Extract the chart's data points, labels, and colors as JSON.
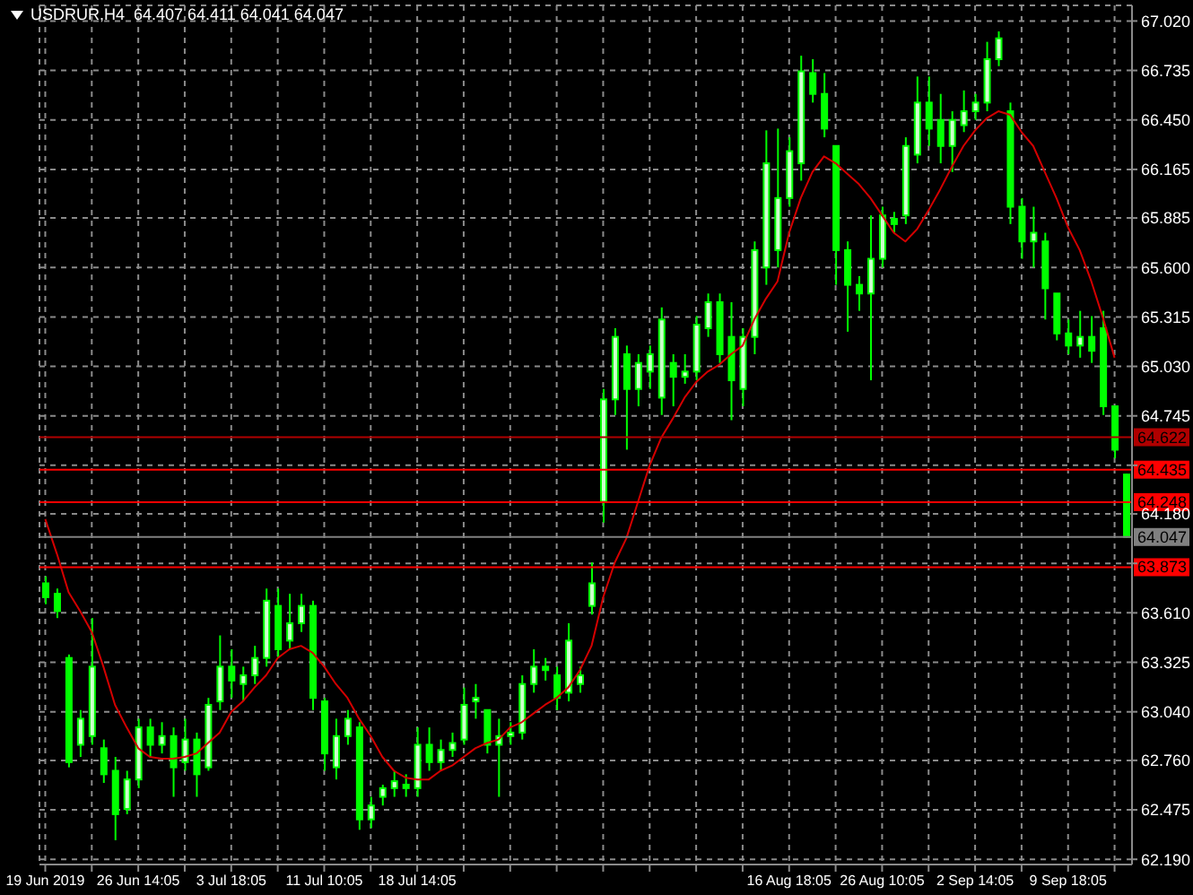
{
  "chart_data": {
    "type": "candlestick",
    "title": "USDRUR,H4  64.407 64.411 64.041 64.047",
    "color": "#00ff00",
    "grid": true,
    "categories": [
      "19 Jun 2019",
      null,
      null,
      null,
      null,
      null,
      null,
      null,
      "26 Jun 14:05",
      null,
      null,
      null,
      null,
      null,
      null,
      null,
      "3 Jul 18:05",
      null,
      null,
      null,
      null,
      null,
      null,
      null,
      "11 Jul 10:05",
      null,
      null,
      null,
      null,
      null,
      null,
      null,
      "18 Jul 14:05",
      null,
      null,
      null,
      null,
      null,
      null,
      null,
      null,
      null,
      null,
      null,
      null,
      null,
      null,
      null,
      null,
      null,
      null,
      null,
      null,
      null,
      null,
      null,
      null,
      null,
      null,
      null,
      null,
      null,
      null,
      null,
      "16 Aug 18:05",
      null,
      null,
      null,
      null,
      null,
      null,
      null,
      "26 Aug 10:05",
      null,
      null,
      null,
      null,
      null,
      null,
      null,
      "2 Sep 14:05",
      null,
      null,
      null,
      null,
      null,
      null,
      null,
      "9 Sep 18:05",
      null,
      null,
      null,
      null,
      null
    ],
    "ohlc": [
      [
        63.78,
        63.82,
        63.66,
        63.7
      ],
      [
        63.72,
        63.75,
        63.58,
        63.62
      ],
      [
        63.35,
        63.37,
        62.72,
        62.75
      ],
      [
        62.85,
        63.05,
        62.78,
        63.0
      ],
      [
        62.9,
        63.58,
        62.85,
        63.3
      ],
      [
        62.83,
        62.88,
        62.63,
        62.68
      ],
      [
        62.7,
        62.78,
        62.3,
        62.45
      ],
      [
        62.48,
        62.7,
        62.45,
        62.65
      ],
      [
        62.65,
        63.0,
        62.6,
        62.95
      ],
      [
        62.95,
        63.0,
        62.78,
        62.85
      ],
      [
        62.85,
        62.98,
        62.8,
        62.9
      ],
      [
        62.9,
        62.95,
        62.55,
        62.72
      ],
      [
        62.75,
        63.0,
        62.7,
        62.88
      ],
      [
        62.88,
        62.92,
        62.55,
        62.68
      ],
      [
        62.72,
        63.12,
        62.7,
        63.08
      ],
      [
        63.1,
        63.48,
        63.05,
        63.3
      ],
      [
        63.3,
        63.4,
        63.12,
        63.22
      ],
      [
        63.2,
        63.3,
        63.1,
        63.25
      ],
      [
        63.25,
        63.42,
        63.2,
        63.35
      ],
      [
        63.35,
        63.75,
        63.3,
        63.68
      ],
      [
        63.65,
        63.75,
        63.35,
        63.4
      ],
      [
        63.45,
        63.72,
        63.4,
        63.55
      ],
      [
        63.55,
        63.72,
        63.5,
        63.65
      ],
      [
        63.65,
        63.68,
        63.05,
        63.12
      ],
      [
        63.1,
        63.12,
        62.7,
        62.8
      ],
      [
        62.72,
        63.0,
        62.65,
        62.9
      ],
      [
        62.9,
        63.05,
        62.85,
        63.0
      ],
      [
        62.95,
        62.98,
        62.36,
        62.42
      ],
      [
        62.42,
        62.55,
        62.37,
        62.5
      ],
      [
        62.55,
        62.62,
        62.5,
        62.6
      ],
      [
        62.6,
        62.7,
        62.55,
        62.64
      ],
      [
        62.62,
        62.68,
        62.55,
        62.6
      ],
      [
        62.6,
        62.95,
        62.55,
        62.85
      ],
      [
        62.85,
        62.95,
        62.7,
        62.75
      ],
      [
        62.75,
        62.88,
        62.7,
        62.82
      ],
      [
        62.82,
        62.92,
        62.78,
        62.86
      ],
      [
        62.88,
        63.18,
        62.85,
        63.08
      ],
      [
        63.1,
        63.2,
        63.0,
        63.12
      ],
      [
        63.05,
        63.05,
        62.8,
        62.85
      ],
      [
        62.85,
        63.0,
        62.55,
        62.9
      ],
      [
        62.9,
        62.98,
        62.85,
        62.92
      ],
      [
        62.92,
        63.25,
        62.88,
        63.2
      ],
      [
        63.2,
        63.4,
        63.15,
        63.3
      ],
      [
        63.3,
        63.35,
        63.22,
        63.28
      ],
      [
        63.25,
        63.3,
        63.05,
        63.12
      ],
      [
        63.15,
        63.55,
        63.1,
        63.45
      ],
      [
        63.2,
        63.3,
        63.15,
        63.25
      ],
      [
        63.65,
        63.9,
        63.6,
        63.78
      ],
      [
        64.25,
        64.9,
        64.13,
        64.84
      ],
      [
        64.84,
        65.25,
        64.75,
        65.2
      ],
      [
        65.1,
        65.15,
        64.55,
        64.9
      ],
      [
        64.9,
        65.1,
        64.8,
        65.05
      ],
      [
        65.0,
        65.15,
        64.9,
        65.1
      ],
      [
        64.85,
        65.37,
        64.75,
        65.3
      ],
      [
        65.05,
        65.1,
        64.8,
        64.97
      ],
      [
        64.97,
        65.1,
        64.93,
        65.0
      ],
      [
        65.0,
        65.32,
        64.95,
        65.27
      ],
      [
        65.25,
        65.45,
        65.2,
        65.4
      ],
      [
        65.4,
        65.45,
        65.05,
        65.1
      ],
      [
        65.2,
        65.4,
        64.72,
        64.95
      ],
      [
        64.9,
        65.25,
        64.8,
        65.2
      ],
      [
        65.2,
        65.75,
        65.1,
        65.7
      ],
      [
        65.6,
        66.39,
        65.5,
        66.2
      ],
      [
        65.7,
        66.4,
        65.6,
        66.0
      ],
      [
        66.0,
        66.35,
        65.95,
        66.27
      ],
      [
        66.2,
        66.82,
        66.1,
        66.73
      ],
      [
        66.72,
        66.8,
        66.55,
        66.6
      ],
      [
        66.6,
        66.72,
        66.35,
        66.4
      ],
      [
        66.3,
        66.3,
        65.5,
        65.7
      ],
      [
        65.7,
        65.75,
        65.23,
        65.5
      ],
      [
        65.5,
        65.55,
        65.35,
        65.45
      ],
      [
        65.45,
        65.9,
        64.95,
        65.65
      ],
      [
        65.65,
        65.95,
        65.6,
        65.9
      ],
      [
        65.88,
        65.92,
        65.8,
        65.85
      ],
      [
        65.9,
        66.35,
        65.85,
        66.3
      ],
      [
        66.25,
        66.7,
        66.2,
        66.55
      ],
      [
        66.55,
        66.7,
        66.3,
        66.4
      ],
      [
        66.45,
        66.6,
        66.2,
        66.3
      ],
      [
        66.3,
        66.5,
        66.15,
        66.45
      ],
      [
        66.42,
        66.62,
        66.38,
        66.5
      ],
      [
        66.5,
        66.6,
        66.45,
        66.55
      ],
      [
        66.55,
        66.9,
        66.5,
        66.8
      ],
      [
        66.8,
        66.96,
        66.76,
        66.92
      ],
      [
        66.5,
        66.55,
        65.85,
        65.95
      ],
      [
        65.95,
        66.0,
        65.65,
        65.75
      ],
      [
        65.75,
        65.95,
        65.6,
        65.8
      ],
      [
        65.75,
        65.8,
        65.3,
        65.48
      ],
      [
        65.45,
        65.45,
        65.18,
        65.22
      ],
      [
        65.22,
        65.3,
        65.1,
        65.15
      ],
      [
        65.15,
        65.35,
        65.08,
        65.2
      ],
      [
        65.2,
        65.32,
        65.05,
        65.12
      ],
      [
        65.25,
        65.35,
        64.75,
        64.8
      ],
      [
        64.8,
        64.8,
        64.5,
        64.55
      ],
      [
        64.407,
        64.411,
        64.041,
        64.047
      ]
    ],
    "series": [
      {
        "type": "line",
        "color": "#d40000",
        "values": [
          64.15,
          63.95,
          63.73,
          63.62,
          63.5,
          63.3,
          63.08,
          62.95,
          62.83,
          62.78,
          62.77,
          62.77,
          62.78,
          62.8,
          62.86,
          62.92,
          63.04,
          63.1,
          63.18,
          63.25,
          63.35,
          63.4,
          63.42,
          63.38,
          63.3,
          63.2,
          63.12,
          63.0,
          62.9,
          62.78,
          62.7,
          62.66,
          62.65,
          62.65,
          62.7,
          62.73,
          62.78,
          62.83,
          62.86,
          62.88,
          62.95,
          62.98,
          63.03,
          63.08,
          63.12,
          63.18,
          63.28,
          63.42,
          63.7,
          63.9,
          64.04,
          64.25,
          64.46,
          64.62,
          64.73,
          64.85,
          64.94,
          65.0,
          65.04,
          65.1,
          65.15,
          65.3,
          65.42,
          65.52,
          65.8,
          66.0,
          66.15,
          66.24,
          66.2,
          66.14,
          66.08,
          66.0,
          65.9,
          65.8,
          65.75,
          65.82,
          65.93,
          66.05,
          66.18,
          66.3,
          66.39,
          66.46,
          66.5,
          66.48,
          66.38,
          66.3,
          66.15,
          66.0,
          65.83,
          65.7,
          65.52,
          65.31,
          65.08,
          null
        ]
      }
    ],
    "ylim": [
      62.16,
      67.11
    ],
    "yticks": [
      {
        "value": 62.19,
        "label": "62.190"
      },
      {
        "value": 62.475,
        "label": "62.475"
      },
      {
        "value": 62.76,
        "label": "62.760"
      },
      {
        "value": 63.04,
        "label": "63.040"
      },
      {
        "value": 63.325,
        "label": "63.325"
      },
      {
        "value": 63.61,
        "label": "63.610"
      },
      {
        "value": 63.895,
        "label": null
      },
      {
        "value": 64.18,
        "label": "64.180"
      },
      {
        "value": 64.46,
        "label": null
      },
      {
        "value": 64.745,
        "label": "64.745"
      },
      {
        "value": 65.03,
        "label": "65.030"
      },
      {
        "value": 65.315,
        "label": "65.315"
      },
      {
        "value": 65.6,
        "label": "65.600"
      },
      {
        "value": 65.885,
        "label": "65.885"
      },
      {
        "value": 66.165,
        "label": "66.165"
      },
      {
        "value": 66.45,
        "label": "66.450"
      },
      {
        "value": 66.735,
        "label": "66.735"
      },
      {
        "value": 67.02,
        "label": "67.020"
      }
    ],
    "ref_lines": [
      {
        "axis": "y",
        "value": 64.622,
        "label": "64.622",
        "color": "#b00000"
      },
      {
        "axis": "y",
        "value": 64.435,
        "label": "64.435",
        "color": "#ff0000"
      },
      {
        "axis": "y",
        "value": 64.248,
        "label": "64.248",
        "color": "#ff0000"
      },
      {
        "axis": "y",
        "value": 64.047,
        "label": "64.047",
        "color": "#808080"
      },
      {
        "axis": "y",
        "value": 63.873,
        "label": "63.873",
        "color": "#ff0000"
      }
    ]
  }
}
